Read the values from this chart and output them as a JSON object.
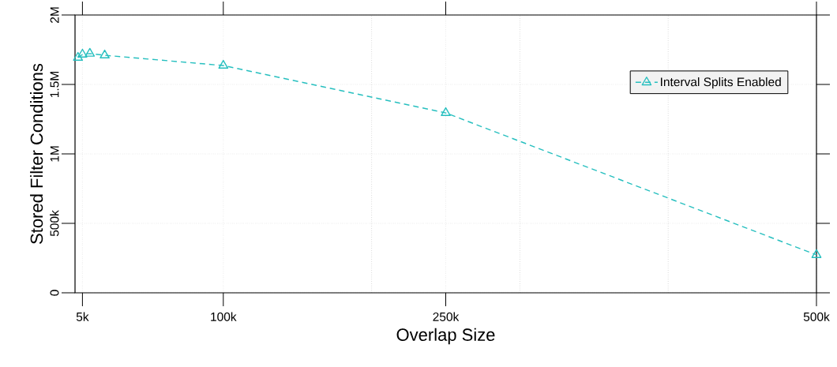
{
  "chart_data": {
    "type": "line",
    "xlabel": "Overlap Size",
    "ylabel": "Stored Filter Conditions",
    "x": [
      2000,
      5000,
      10000,
      20000,
      100000,
      250000,
      500000
    ],
    "series": [
      {
        "name": "Interval Splits Enabled",
        "color": "#26bfbf",
        "values": [
          1693000,
          1716000,
          1722000,
          1710000,
          1636000,
          1295000,
          273000
        ]
      }
    ],
    "xlim": [
      0,
      500000
    ],
    "xticks": [
      {
        "value": 5000,
        "label": "5k"
      },
      {
        "value": 100000,
        "label": "100k"
      },
      {
        "value": 200000,
        "label": null
      },
      {
        "value": 250000,
        "label": "250k"
      },
      {
        "value": 300000,
        "label": null
      },
      {
        "value": 400000,
        "label": null
      },
      {
        "value": 500000,
        "label": "500k"
      }
    ],
    "ylim": [
      0,
      2000000
    ],
    "yticks": [
      0,
      {
        "value": 500000,
        "label": "500k"
      },
      {
        "value": 1000000,
        "label": "1M"
      },
      {
        "value": 1500000,
        "label": "1.5M"
      },
      {
        "value": 2000000,
        "label": "2M"
      }
    ],
    "grid": true,
    "legend": "top right",
    "marker": "triangle",
    "line_style": "dashed"
  }
}
